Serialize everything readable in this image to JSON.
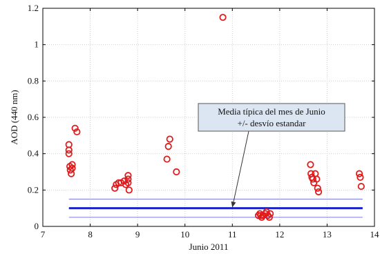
{
  "chart_data": {
    "type": "scatter",
    "xlabel": "Junio 2011",
    "ylabel": "AOD (440 nm)",
    "xlim": [
      7,
      14
    ],
    "ylim": [
      0,
      1.2
    ],
    "xticks": [
      7,
      8,
      9,
      10,
      11,
      12,
      13,
      14
    ],
    "yticks": [
      0,
      0.2,
      0.4,
      0.6,
      0.8,
      1,
      1.2
    ],
    "grid": true,
    "marker_color": "#e01a1a",
    "mean_line_color": "#1a22c8",
    "band_line_color": "#8a8ae0",
    "points": [
      [
        7.55,
        0.45
      ],
      [
        7.55,
        0.42
      ],
      [
        7.55,
        0.4
      ],
      [
        7.57,
        0.33
      ],
      [
        7.58,
        0.31
      ],
      [
        7.6,
        0.29
      ],
      [
        7.62,
        0.34
      ],
      [
        7.62,
        0.32
      ],
      [
        7.68,
        0.54
      ],
      [
        7.72,
        0.52
      ],
      [
        8.52,
        0.21
      ],
      [
        8.55,
        0.23
      ],
      [
        8.6,
        0.24
      ],
      [
        8.65,
        0.24
      ],
      [
        8.72,
        0.25
      ],
      [
        8.75,
        0.23
      ],
      [
        8.8,
        0.28
      ],
      [
        8.8,
        0.26
      ],
      [
        8.8,
        0.24
      ],
      [
        8.82,
        0.2
      ],
      [
        9.62,
        0.37
      ],
      [
        9.65,
        0.44
      ],
      [
        9.68,
        0.48
      ],
      [
        9.82,
        0.3
      ],
      [
        10.8,
        1.15
      ],
      [
        11.55,
        0.06
      ],
      [
        11.58,
        0.07
      ],
      [
        11.6,
        0.06
      ],
      [
        11.62,
        0.05
      ],
      [
        11.65,
        0.06
      ],
      [
        11.7,
        0.07
      ],
      [
        11.72,
        0.08
      ],
      [
        11.75,
        0.06
      ],
      [
        11.78,
        0.05
      ],
      [
        11.8,
        0.07
      ],
      [
        12.65,
        0.34
      ],
      [
        12.66,
        0.29
      ],
      [
        12.68,
        0.27
      ],
      [
        12.7,
        0.26
      ],
      [
        12.72,
        0.24
      ],
      [
        12.75,
        0.29
      ],
      [
        12.78,
        0.26
      ],
      [
        12.8,
        0.21
      ],
      [
        12.82,
        0.19
      ],
      [
        13.68,
        0.29
      ],
      [
        13.7,
        0.27
      ],
      [
        13.72,
        0.22
      ]
    ],
    "mean_value": 0.1,
    "band_upper": 0.15,
    "band_lower": 0.05,
    "annotation": {
      "line1": "Media típica del mes de Junio",
      "line2": "+/- desvío estandar",
      "arrow_target": [
        11.0,
        0.12
      ]
    }
  }
}
